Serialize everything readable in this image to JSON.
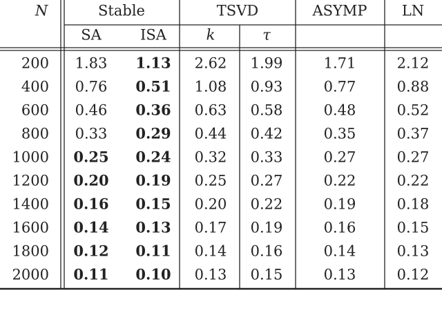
{
  "table": {
    "header": {
      "top": [
        "N",
        "Stable",
        "TSVD",
        "ASYMP",
        "LN"
      ],
      "sub": [
        "SA",
        "ISA",
        "k",
        "τ"
      ]
    },
    "rows": [
      {
        "n": "200",
        "cells": [
          "1.83",
          "1.13",
          "2.62",
          "1.99",
          "1.71",
          "2.12"
        ],
        "bold": [
          1
        ]
      },
      {
        "n": "400",
        "cells": [
          "0.76",
          "0.51",
          "1.08",
          "0.93",
          "0.77",
          "0.88"
        ],
        "bold": [
          1
        ]
      },
      {
        "n": "600",
        "cells": [
          "0.46",
          "0.36",
          "0.63",
          "0.58",
          "0.48",
          "0.52"
        ],
        "bold": [
          1
        ]
      },
      {
        "n": "800",
        "cells": [
          "0.33",
          "0.29",
          "0.44",
          "0.42",
          "0.35",
          "0.37"
        ],
        "bold": [
          1
        ]
      },
      {
        "n": "1000",
        "cells": [
          "0.25",
          "0.24",
          "0.32",
          "0.33",
          "0.27",
          "0.27"
        ],
        "bold": [
          0,
          1
        ]
      },
      {
        "n": "1200",
        "cells": [
          "0.20",
          "0.19",
          "0.25",
          "0.27",
          "0.22",
          "0.22"
        ],
        "bold": [
          0,
          1
        ]
      },
      {
        "n": "1400",
        "cells": [
          "0.16",
          "0.15",
          "0.20",
          "0.22",
          "0.19",
          "0.18"
        ],
        "bold": [
          0,
          1
        ]
      },
      {
        "n": "1600",
        "cells": [
          "0.14",
          "0.13",
          "0.17",
          "0.19",
          "0.16",
          "0.15"
        ],
        "bold": [
          0,
          1
        ]
      },
      {
        "n": "1800",
        "cells": [
          "0.12",
          "0.11",
          "0.14",
          "0.16",
          "0.14",
          "0.13"
        ],
        "bold": [
          0,
          1
        ]
      },
      {
        "n": "2000",
        "cells": [
          "0.11",
          "0.10",
          "0.13",
          "0.15",
          "0.13",
          "0.12"
        ],
        "bold": [
          0,
          1
        ]
      }
    ]
  }
}
